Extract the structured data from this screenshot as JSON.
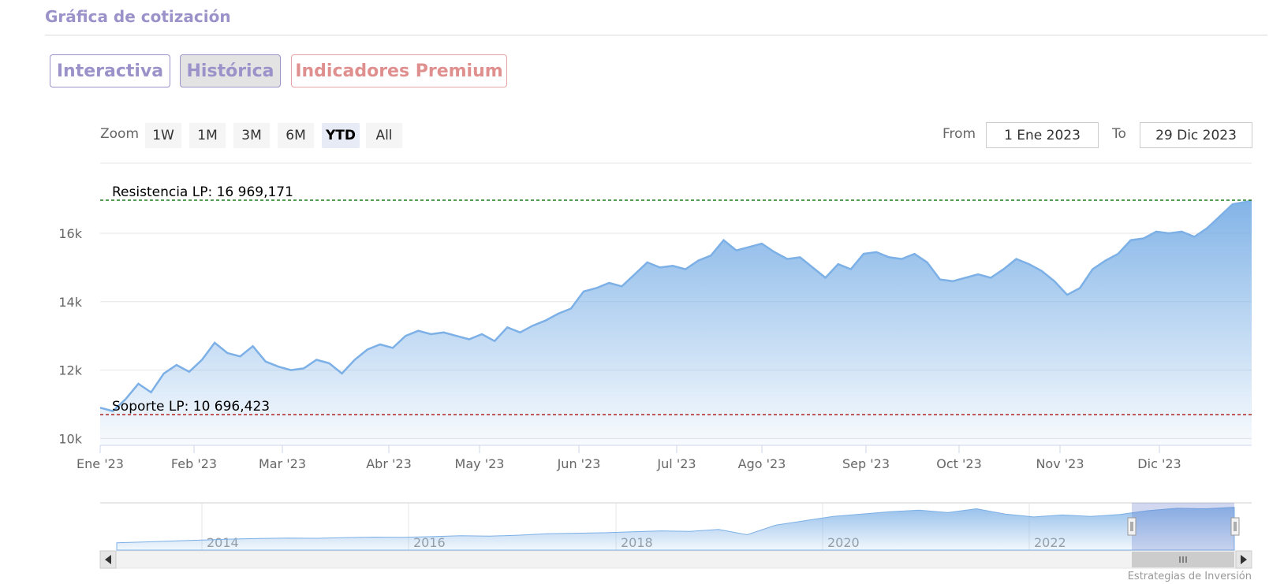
{
  "title": "Gráfica de cotización",
  "tabs": [
    {
      "label": "Interactiva"
    },
    {
      "label": "Histórica"
    },
    {
      "label": "Indicadores Premium"
    }
  ],
  "zoom": {
    "label": "Zoom",
    "buttons": [
      "1W",
      "1M",
      "3M",
      "6M",
      "YTD",
      "All"
    ],
    "selected": "YTD"
  },
  "range": {
    "from_label": "From",
    "from_value": "1 Ene 2023",
    "to_label": "To",
    "to_value": "29 Dic 2023"
  },
  "credit": "Estrategias de Inversión",
  "chart_data": {
    "type": "area",
    "x_ticks": [
      "Ene '23",
      "Feb '23",
      "Mar '23",
      "Abr '23",
      "May '23",
      "Jun '23",
      "Jul '23",
      "Ago '23",
      "Sep '23",
      "Oct '23",
      "Nov '23",
      "Dic '23"
    ],
    "y_ticks": [
      "10k",
      "12k",
      "14k",
      "16k"
    ],
    "ylim": [
      9800,
      16969.171
    ],
    "x_range": [
      "2023-01-01",
      "2023-12-29"
    ],
    "plot_lines": [
      {
        "label": "Resistencia LP: 16 969,171",
        "value": 16969.171,
        "color": "#1f7a1f"
      },
      {
        "label": "Soporte LP: 10 696,423",
        "value": 10696.423,
        "color": "#b22222"
      }
    ],
    "series": [
      {
        "color": "#7cb0e6",
        "x": [
          "2023-01-01",
          "2023-01-05",
          "2023-01-09",
          "2023-01-13",
          "2023-01-17",
          "2023-01-21",
          "2023-01-25",
          "2023-01-29",
          "2023-02-02",
          "2023-02-06",
          "2023-02-10",
          "2023-02-14",
          "2023-02-18",
          "2023-02-22",
          "2023-02-26",
          "2023-03-02",
          "2023-03-06",
          "2023-03-10",
          "2023-03-14",
          "2023-03-18",
          "2023-03-22",
          "2023-03-26",
          "2023-03-30",
          "2023-04-03",
          "2023-04-07",
          "2023-04-11",
          "2023-04-15",
          "2023-04-19",
          "2023-04-23",
          "2023-04-27",
          "2023-05-01",
          "2023-05-05",
          "2023-05-09",
          "2023-05-13",
          "2023-05-17",
          "2023-05-21",
          "2023-05-25",
          "2023-05-29",
          "2023-06-02",
          "2023-06-06",
          "2023-06-10",
          "2023-06-14",
          "2023-06-18",
          "2023-06-22",
          "2023-06-26",
          "2023-06-30",
          "2023-07-04",
          "2023-07-08",
          "2023-07-12",
          "2023-07-16",
          "2023-07-20",
          "2023-07-24",
          "2023-07-28",
          "2023-08-01",
          "2023-08-05",
          "2023-08-09",
          "2023-08-13",
          "2023-08-17",
          "2023-08-21",
          "2023-08-25",
          "2023-08-29",
          "2023-09-02",
          "2023-09-06",
          "2023-09-10",
          "2023-09-14",
          "2023-09-18",
          "2023-09-22",
          "2023-09-26",
          "2023-09-30",
          "2023-10-04",
          "2023-10-08",
          "2023-10-12",
          "2023-10-16",
          "2023-10-20",
          "2023-10-24",
          "2023-10-28",
          "2023-11-01",
          "2023-11-05",
          "2023-11-09",
          "2023-11-13",
          "2023-11-17",
          "2023-11-21",
          "2023-11-25",
          "2023-11-29",
          "2023-12-03",
          "2023-12-07",
          "2023-12-11",
          "2023-12-15",
          "2023-12-19",
          "2023-12-23",
          "2023-12-29"
        ],
        "values": [
          10900,
          10800,
          11150,
          11600,
          11350,
          11900,
          12150,
          11950,
          12300,
          12800,
          12500,
          12400,
          12700,
          12250,
          12100,
          12000,
          12050,
          12300,
          12200,
          11900,
          12300,
          12600,
          12750,
          12650,
          13000,
          13150,
          13050,
          13100,
          13000,
          12900,
          13050,
          12850,
          13250,
          13100,
          13300,
          13450,
          13650,
          13800,
          14300,
          14400,
          14550,
          14450,
          14800,
          15150,
          15000,
          15050,
          14950,
          15200,
          15350,
          15800,
          15500,
          15600,
          15700,
          15450,
          15250,
          15300,
          15000,
          14700,
          15100,
          14950,
          15400,
          15450,
          15300,
          15250,
          15400,
          15150,
          14650,
          14600,
          14700,
          14800,
          14700,
          14950,
          15250,
          15100,
          14900,
          14600,
          14200,
          14400,
          14950,
          15200,
          15400,
          15800,
          15850,
          16050,
          16000,
          16050,
          15900,
          16150,
          16500,
          16850,
          16950
        ]
      }
    ]
  },
  "navigator": {
    "years": [
      "2014",
      "2016",
      "2018",
      "2020",
      "2022"
    ],
    "values": [
      5500,
      5700,
      5900,
      6100,
      6300,
      6400,
      6500,
      6450,
      6600,
      6700,
      6650,
      6800,
      7000,
      6900,
      7100,
      7400,
      7500,
      7600,
      7800,
      8000,
      7900,
      8300,
      7200,
      9200,
      10100,
      11000,
      11500,
      12000,
      12300,
      11800,
      12600,
      11500,
      10900,
      11300,
      11000,
      11400,
      12200,
      12700,
      12600,
      12900
    ]
  }
}
